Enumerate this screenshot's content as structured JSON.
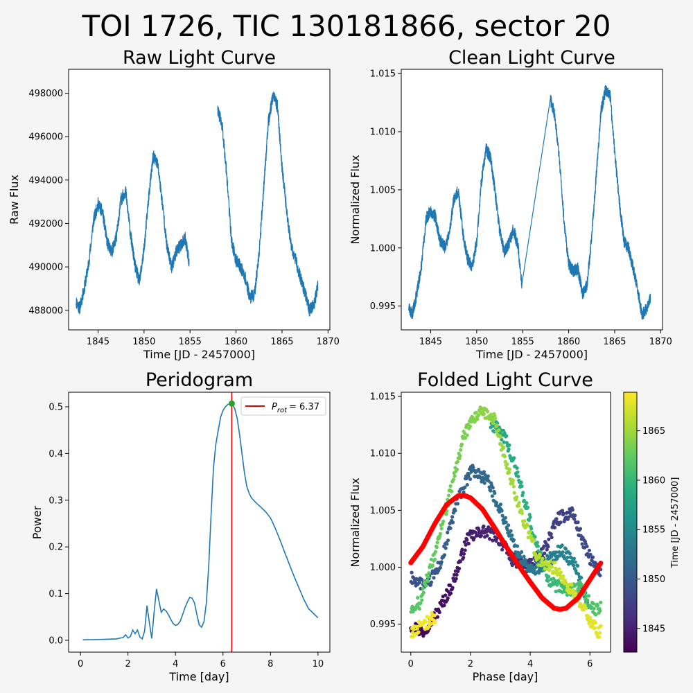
{
  "figure": {
    "title": "TOI 1726, TIC 130181866, sector 20"
  },
  "chart_data": [
    {
      "id": "raw",
      "type": "line",
      "title": "Raw Light Curve",
      "xlabel": "Time [JD - 2457000]",
      "ylabel": "Raw Flux",
      "xlim": [
        1841.8,
        1870.2
      ],
      "ylim": [
        487100,
        499100
      ],
      "xticks": [
        1845,
        1850,
        1855,
        1860,
        1865,
        1870
      ],
      "yticks": [
        488000,
        490000,
        492000,
        494000,
        496000,
        498000
      ],
      "yticklabels": [
        "488000",
        "490000",
        "492000",
        "494000",
        "496000",
        "498000"
      ],
      "color": "#1f77b4",
      "gaps_after_x": [
        1854.9
      ],
      "noise": 300,
      "x": [
        1842.6,
        1843.0,
        1843.5,
        1844.0,
        1844.5,
        1845.0,
        1845.5,
        1846.0,
        1846.5,
        1847.0,
        1847.5,
        1848.0,
        1848.5,
        1849.0,
        1849.5,
        1850.0,
        1850.5,
        1851.0,
        1851.5,
        1852.0,
        1852.5,
        1853.0,
        1853.5,
        1854.0,
        1854.5,
        1854.9,
        1858.0,
        1858.5,
        1859.0,
        1859.5,
        1860.0,
        1860.5,
        1861.0,
        1861.5,
        1862.0,
        1862.5,
        1863.0,
        1863.5,
        1864.0,
        1864.5,
        1865.0,
        1865.5,
        1866.0,
        1866.5,
        1867.0,
        1867.5,
        1868.0,
        1868.5,
        1868.9
      ],
      "y": [
        488400,
        488100,
        489000,
        490200,
        492100,
        492900,
        492500,
        491100,
        490700,
        491400,
        493100,
        493500,
        491600,
        490100,
        489300,
        490800,
        493200,
        495100,
        494700,
        492900,
        490900,
        490000,
        490700,
        491000,
        491300,
        490200,
        497200,
        496500,
        494200,
        491200,
        490300,
        490000,
        489500,
        488600,
        488700,
        490600,
        493600,
        496600,
        497900,
        497400,
        494600,
        492600,
        490900,
        490300,
        489500,
        488800,
        488000,
        488300,
        489100
      ]
    },
    {
      "id": "clean",
      "type": "line",
      "title": "Clean Light Curve",
      "xlabel": "Time [JD - 2457000]",
      "ylabel": "Normalized Flux",
      "xlim": [
        1841.8,
        1870.2
      ],
      "ylim": [
        0.99295,
        1.01537
      ],
      "xticks": [
        1845,
        1850,
        1855,
        1860,
        1865,
        1870
      ],
      "yticks": [
        0.995,
        1.0,
        1.005,
        1.01,
        1.015
      ],
      "yticklabels": [
        "0.995",
        "1.000",
        "1.005",
        "1.010",
        "1.015"
      ],
      "color": "#1f77b4",
      "noise": 0.00055,
      "noisy_until_x": 1854.9,
      "noisy_from_x": 1858.0,
      "x": [
        1842.6,
        1843.0,
        1843.5,
        1844.0,
        1844.5,
        1845.0,
        1845.5,
        1846.0,
        1846.5,
        1847.0,
        1847.5,
        1848.0,
        1848.5,
        1849.0,
        1849.5,
        1850.0,
        1850.5,
        1851.0,
        1851.5,
        1852.0,
        1852.5,
        1853.0,
        1853.5,
        1854.0,
        1854.5,
        1854.9,
        1858.0,
        1858.5,
        1859.0,
        1859.5,
        1860.0,
        1860.5,
        1861.0,
        1861.5,
        1862.0,
        1862.5,
        1863.0,
        1863.5,
        1864.0,
        1864.5,
        1865.0,
        1865.5,
        1866.0,
        1866.5,
        1867.0,
        1867.5,
        1868.0,
        1868.5,
        1868.9
      ],
      "y": [
        0.9949,
        0.9943,
        0.9961,
        0.9985,
        1.0025,
        1.0032,
        1.0027,
        1.0007,
        1.0001,
        1.0011,
        1.0042,
        1.0049,
        1.0013,
        0.9991,
        0.9983,
        1.0005,
        1.0056,
        1.0085,
        1.0078,
        1.0049,
        1.0015,
        0.9996,
        1.0004,
        1.0016,
        1.0001,
        0.9968,
        1.0128,
        1.0114,
        1.0075,
        1.0023,
        0.9986,
        0.998,
        0.9982,
        0.9961,
        0.9969,
        1.001,
        1.0062,
        1.0117,
        1.0136,
        1.0131,
        1.0083,
        1.004,
        1.0006,
        1.0,
        0.9983,
        0.9963,
        0.9942,
        0.9949,
        0.9957
      ]
    },
    {
      "id": "periodogram",
      "type": "line",
      "title": "Peridogram",
      "xlabel": "Time [day]",
      "ylabel": "Power",
      "xlim": [
        -0.5,
        10.5
      ],
      "ylim": [
        -0.0253,
        0.5312
      ],
      "xticks": [
        0,
        2,
        4,
        6,
        8,
        10
      ],
      "yticks": [
        0.0,
        0.1,
        0.2,
        0.3,
        0.4,
        0.5
      ],
      "yticklabels": [
        "0.0",
        "0.1",
        "0.2",
        "0.3",
        "0.4",
        "0.5"
      ],
      "color": "#1f77b4",
      "x": [
        0.1,
        1.0,
        1.5,
        1.8,
        1.9,
        2.0,
        2.1,
        2.2,
        2.3,
        2.4,
        2.5,
        2.6,
        2.7,
        2.8,
        2.9,
        3.0,
        3.1,
        3.2,
        3.3,
        3.4,
        3.5,
        3.6,
        3.7,
        3.8,
        3.9,
        4.0,
        4.1,
        4.2,
        4.3,
        4.4,
        4.5,
        4.6,
        4.7,
        4.8,
        4.9,
        5.0,
        5.1,
        5.2,
        5.3,
        5.4,
        5.5,
        5.6,
        5.7,
        5.8,
        5.9,
        6.0,
        6.1,
        6.2,
        6.3,
        6.37,
        6.45,
        6.5,
        6.6,
        6.7,
        6.8,
        6.9,
        7.0,
        7.1,
        7.2,
        7.4,
        7.6,
        7.8,
        8.0,
        8.2,
        8.4,
        8.6,
        8.8,
        9.0,
        9.2,
        9.4,
        9.6,
        9.8,
        10.0
      ],
      "y": [
        0.001,
        0.002,
        0.003,
        0.006,
        0.012,
        0.005,
        0.008,
        0.022,
        0.014,
        0.022,
        0.007,
        0.003,
        0.02,
        0.074,
        0.038,
        0.004,
        0.06,
        0.11,
        0.085,
        0.06,
        0.067,
        0.063,
        0.055,
        0.045,
        0.036,
        0.032,
        0.034,
        0.041,
        0.055,
        0.07,
        0.082,
        0.092,
        0.09,
        0.08,
        0.055,
        0.033,
        0.028,
        0.04,
        0.08,
        0.16,
        0.27,
        0.37,
        0.42,
        0.45,
        0.478,
        0.492,
        0.5,
        0.505,
        0.507,
        0.507,
        0.5,
        0.495,
        0.475,
        0.44,
        0.4,
        0.36,
        0.33,
        0.315,
        0.305,
        0.294,
        0.285,
        0.275,
        0.262,
        0.24,
        0.215,
        0.188,
        0.162,
        0.136,
        0.112,
        0.088,
        0.068,
        0.058,
        0.048
      ],
      "peak": {
        "x": 6.37,
        "y": 0.507,
        "color": "#2ca02c"
      },
      "vline": {
        "x": 6.37,
        "color": "#e00000"
      },
      "legend": {
        "symbol": "P",
        "subscript": "rot",
        "value": "= 6.37",
        "location": "top-right"
      }
    },
    {
      "id": "folded",
      "type": "scatter",
      "title": "Folded Light Curve",
      "xlabel": "Phase [day]",
      "ylabel": "Normalized Flux",
      "xlim": [
        -0.32,
        6.69
      ],
      "ylim": [
        0.99255,
        1.01537
      ],
      "xticks": [
        0,
        2,
        4,
        6
      ],
      "yticks": [
        0.995,
        1.0,
        1.005,
        1.01,
        1.015
      ],
      "yticklabels": [
        "0.995",
        "1.000",
        "1.005",
        "1.010",
        "1.015"
      ],
      "period": 6.37,
      "t0": 1842.6,
      "time_range": [
        1842.6,
        1868.9
      ],
      "noise": 0.00055,
      "model": {
        "color": "#ff0000",
        "x": [
          0.0,
          0.4,
          0.8,
          1.2,
          1.6,
          1.8,
          2.0,
          2.4,
          2.8,
          3.2,
          3.6,
          4.0,
          4.4,
          4.8,
          5.0,
          5.2,
          5.6,
          6.0,
          6.37
        ],
        "y": [
          1.0004,
          1.0018,
          1.0038,
          1.0055,
          1.0063,
          1.0063,
          1.0061,
          1.0051,
          1.0035,
          1.0018,
          1.0002,
          0.9987,
          0.9973,
          0.9964,
          0.9963,
          0.9964,
          0.9973,
          0.9989,
          1.0004
        ]
      },
      "colorbar": {
        "label": "Time [JD - 2457000]",
        "ticks": [
          1845,
          1850,
          1855,
          1860,
          1865
        ],
        "range": [
          1842.6,
          1868.9
        ],
        "colormap": "viridis"
      }
    }
  ]
}
